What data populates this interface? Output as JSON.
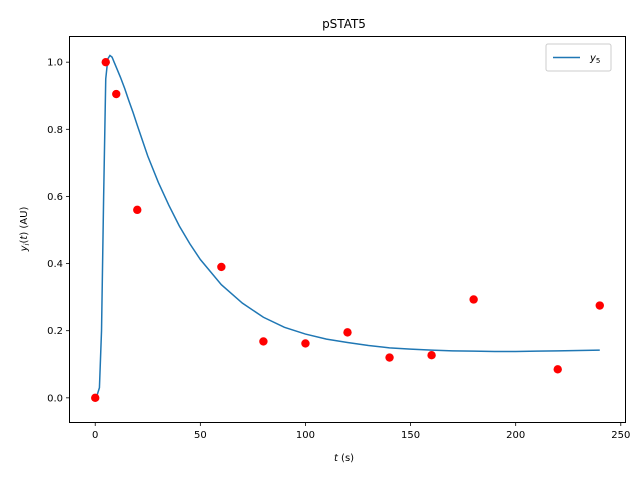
{
  "chart_data": {
    "type": "line",
    "title": "pSTAT5",
    "xlabel": "t (s)",
    "ylabel": "y_i(t) (AU)",
    "xlim": [
      -12,
      252
    ],
    "ylim": [
      -0.072,
      1.075
    ],
    "xticks": [
      0,
      50,
      100,
      150,
      200,
      250
    ],
    "yticks": [
      0.0,
      0.2,
      0.4,
      0.6,
      0.8,
      1.0
    ],
    "xtick_labels": [
      "0",
      "50",
      "100",
      "150",
      "200",
      "250"
    ],
    "ytick_labels": [
      "0.0",
      "0.2",
      "0.4",
      "0.6",
      "0.8",
      "1.0"
    ],
    "grid": false,
    "legend_position": "top-right",
    "series": [
      {
        "name": "y5",
        "kind": "line",
        "color": "#1f77b4",
        "x": [
          0,
          1,
          2,
          3,
          4,
          5,
          6,
          7,
          8,
          9,
          10,
          12,
          14,
          16,
          18,
          20,
          25,
          30,
          35,
          40,
          45,
          50,
          60,
          70,
          80,
          90,
          100,
          110,
          120,
          130,
          140,
          150,
          160,
          170,
          180,
          190,
          200,
          210,
          220,
          230,
          240
        ],
        "y": [
          0.0,
          0.01,
          0.03,
          0.2,
          0.6,
          0.95,
          1.01,
          1.02,
          1.015,
          1.0,
          0.985,
          0.955,
          0.922,
          0.885,
          0.85,
          0.812,
          0.72,
          0.642,
          0.574,
          0.512,
          0.459,
          0.412,
          0.337,
          0.282,
          0.24,
          0.21,
          0.19,
          0.175,
          0.165,
          0.156,
          0.149,
          0.145,
          0.142,
          0.14,
          0.139,
          0.138,
          0.138,
          0.139,
          0.14,
          0.141,
          0.142
        ]
      },
      {
        "name": "",
        "kind": "scatter",
        "color": "#ff0000",
        "x": [
          0,
          5,
          10,
          20,
          60,
          80,
          100,
          120,
          140,
          160,
          180,
          220,
          240
        ],
        "y": [
          0.0,
          1.0,
          0.905,
          0.56,
          0.39,
          0.168,
          0.162,
          0.195,
          0.12,
          0.127,
          0.293,
          0.085,
          0.275
        ]
      }
    ],
    "legend": [
      {
        "label": "y",
        "subscript": "5"
      }
    ]
  }
}
